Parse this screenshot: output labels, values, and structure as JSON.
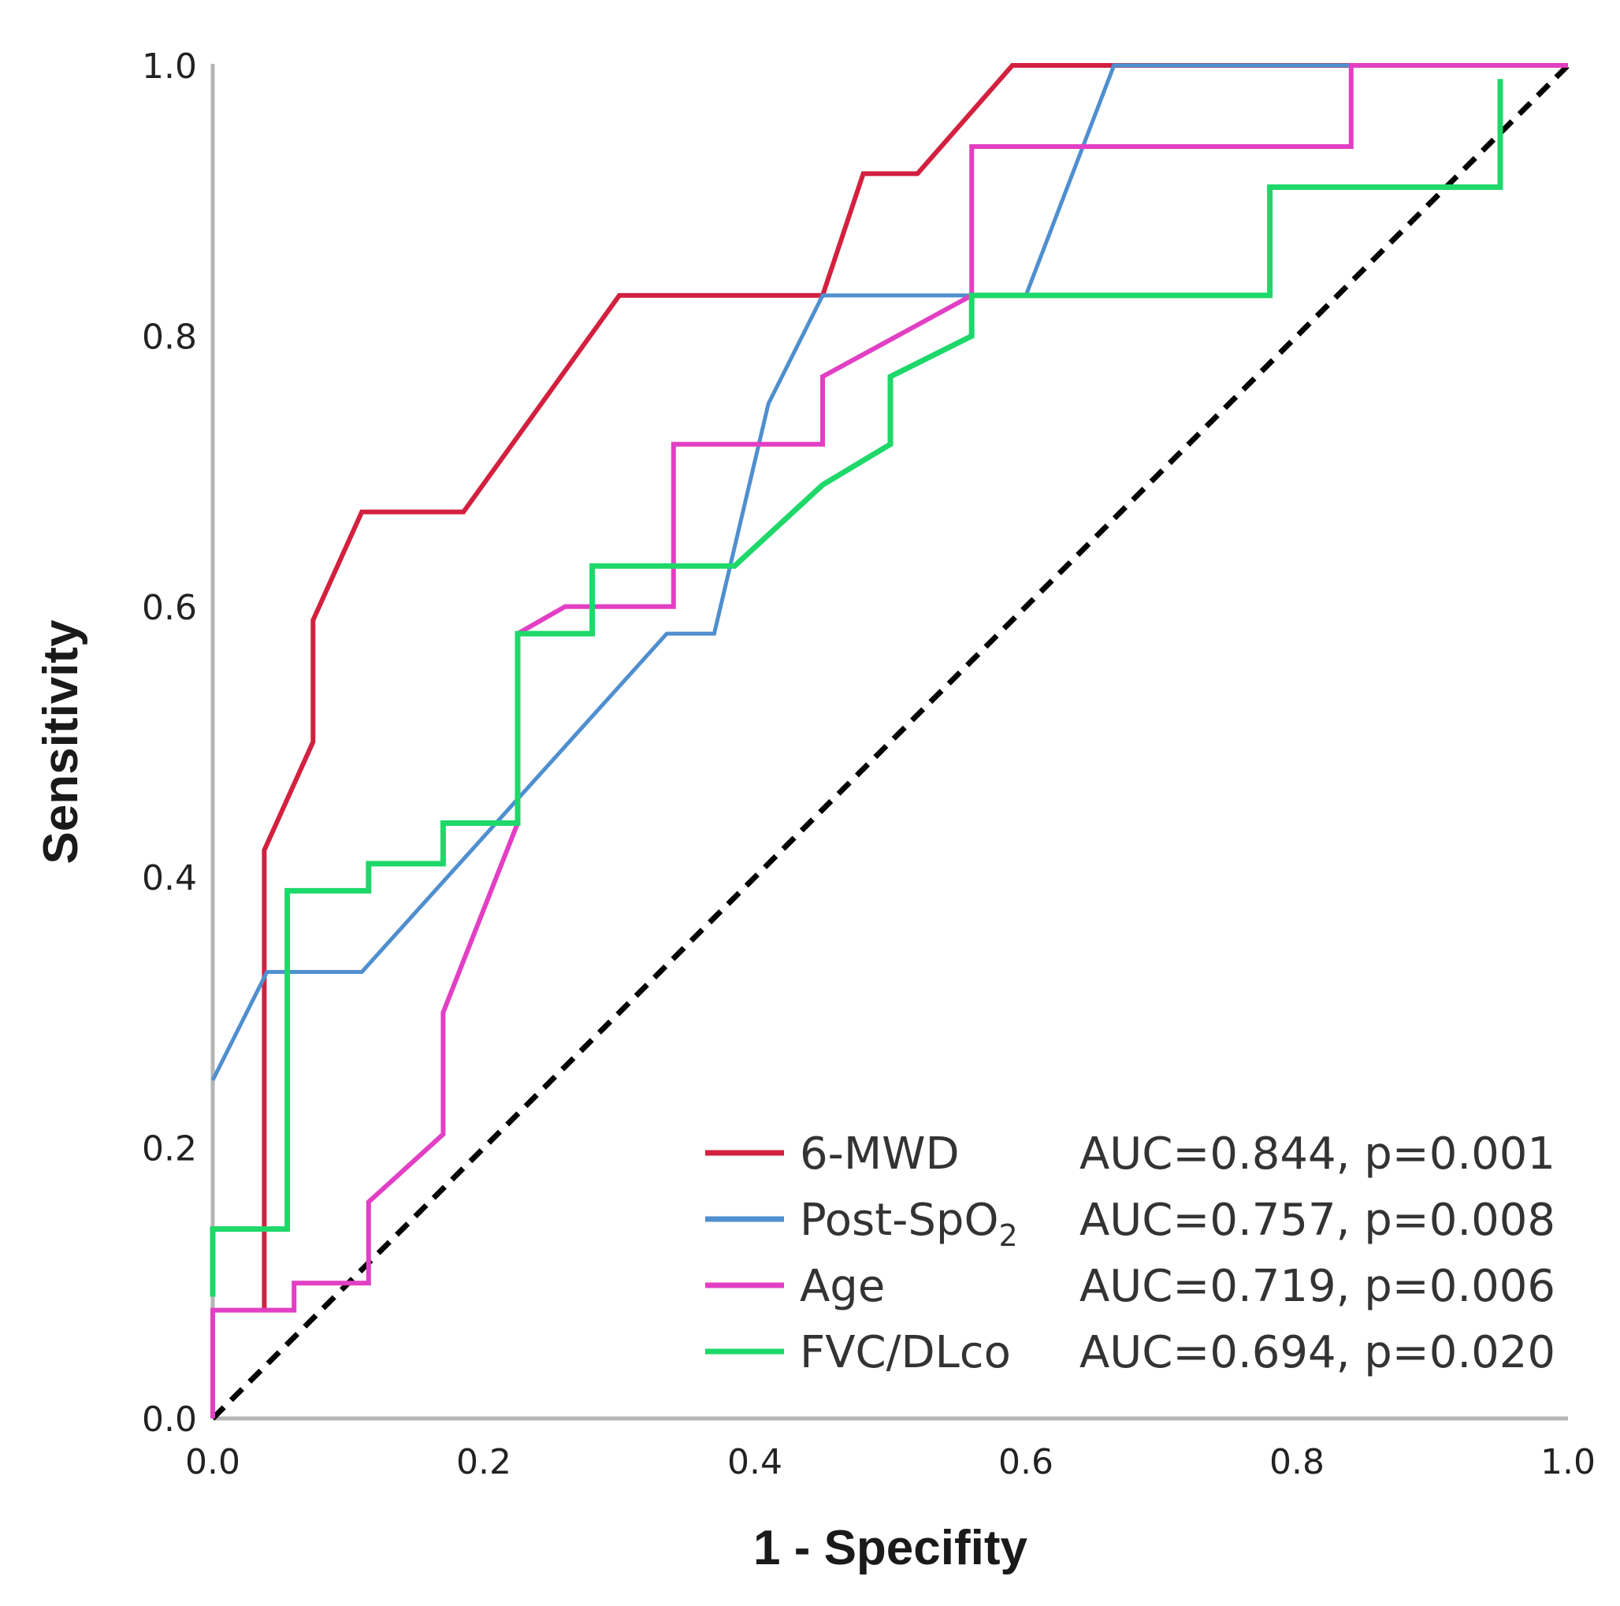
{
  "chart_data": {
    "type": "line",
    "title": "",
    "xlabel": "1 - Specifity",
    "ylabel": "Sensitivity",
    "xlim": [
      0,
      1
    ],
    "ylim": [
      0,
      1
    ],
    "x_ticks": [
      "0.0",
      "0.2",
      "0.4",
      "0.6",
      "0.8",
      "1.0"
    ],
    "y_ticks": [
      "0.0",
      "0.2",
      "0.4",
      "0.6",
      "0.8",
      "1.0"
    ],
    "legend_position": "bottom-right",
    "reference_line": {
      "name": "Reference",
      "style": "dashed",
      "color": "#000000",
      "points": [
        [
          0,
          0
        ],
        [
          1,
          1
        ]
      ]
    },
    "series": [
      {
        "name": "6-MWD",
        "label_main": "6-MWD",
        "stats": "AUC=0.844, p=0.001",
        "color": "#d3203f",
        "points": [
          [
            0.038,
            0.08
          ],
          [
            0.038,
            0.42
          ],
          [
            0.074,
            0.5
          ],
          [
            0.074,
            0.59
          ],
          [
            0.11,
            0.67
          ],
          [
            0.185,
            0.67
          ],
          [
            0.3,
            0.83
          ],
          [
            0.45,
            0.83
          ],
          [
            0.48,
            0.92
          ],
          [
            0.52,
            0.92
          ],
          [
            0.59,
            1.0
          ],
          [
            1.0,
            1.0
          ]
        ]
      },
      {
        "name": "Post-SpO2",
        "label_main": "Post-SpO",
        "label_sub": "2",
        "stats": "AUC=0.757, p=0.008",
        "color": "#4f8fcf",
        "points": [
          [
            0.0,
            0.25
          ],
          [
            0.04,
            0.33
          ],
          [
            0.11,
            0.33
          ],
          [
            0.335,
            0.58
          ],
          [
            0.37,
            0.58
          ],
          [
            0.41,
            0.75
          ],
          [
            0.45,
            0.83
          ],
          [
            0.6,
            0.83
          ],
          [
            0.665,
            1.0
          ],
          [
            1.0,
            1.0
          ]
        ]
      },
      {
        "name": "Age",
        "label_main": "Age",
        "stats": "AUC=0.719, p=0.006",
        "color": "#e23fc4",
        "points": [
          [
            0.0,
            0.0
          ],
          [
            0.0,
            0.08
          ],
          [
            0.06,
            0.08
          ],
          [
            0.06,
            0.1
          ],
          [
            0.115,
            0.1
          ],
          [
            0.115,
            0.16
          ],
          [
            0.17,
            0.21
          ],
          [
            0.17,
            0.3
          ],
          [
            0.225,
            0.44
          ],
          [
            0.225,
            0.58
          ],
          [
            0.26,
            0.6
          ],
          [
            0.34,
            0.6
          ],
          [
            0.34,
            0.72
          ],
          [
            0.45,
            0.72
          ],
          [
            0.45,
            0.77
          ],
          [
            0.56,
            0.83
          ],
          [
            0.56,
            0.94
          ],
          [
            0.84,
            0.94
          ],
          [
            0.84,
            1.0
          ],
          [
            1.0,
            1.0
          ]
        ]
      },
      {
        "name": "FVC/DLco",
        "label_main": "FVC/DLco",
        "stats": "AUC=0.694, p=0.020",
        "color": "#1ed86a",
        "points": [
          [
            0.0,
            0.09
          ],
          [
            0.0,
            0.14
          ],
          [
            0.055,
            0.14
          ],
          [
            0.055,
            0.39
          ],
          [
            0.115,
            0.39
          ],
          [
            0.115,
            0.41
          ],
          [
            0.17,
            0.41
          ],
          [
            0.17,
            0.44
          ],
          [
            0.225,
            0.44
          ],
          [
            0.225,
            0.58
          ],
          [
            0.28,
            0.58
          ],
          [
            0.28,
            0.63
          ],
          [
            0.385,
            0.63
          ],
          [
            0.45,
            0.69
          ],
          [
            0.5,
            0.72
          ],
          [
            0.5,
            0.77
          ],
          [
            0.56,
            0.8
          ],
          [
            0.56,
            0.83
          ],
          [
            0.78,
            0.83
          ],
          [
            0.78,
            0.91
          ],
          [
            0.95,
            0.91
          ],
          [
            0.95,
            0.99
          ]
        ]
      }
    ]
  }
}
